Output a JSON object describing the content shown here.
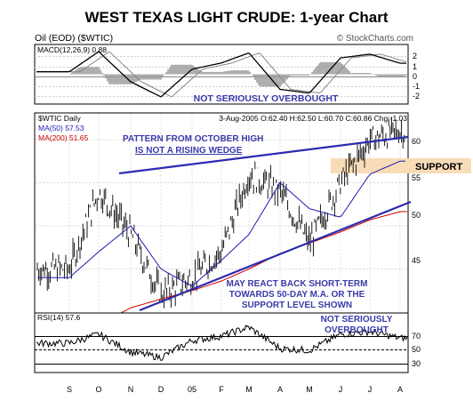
{
  "header": {
    "title": "WEST TEXAS LIGHT CRUDE: 1-year Chart",
    "symbol_line": "Oil (EOD) ($WTIC)",
    "watermark": "© StockCharts.com"
  },
  "macd_panel": {
    "label": "MACD(12,26,9) 0.88",
    "annotation": "NOT SERIOUSLY OVERBOUGHT",
    "yticks": [
      "2",
      "1",
      "0",
      "-1",
      "-2"
    ]
  },
  "price_panel": {
    "name": "$WTIC Daily",
    "quote": "3-Aug-2005  O:62.40  H:62.50  L:60.70  C:60.86  Chg:-1.03",
    "ma50": "MA(50) 57.53",
    "ma200": "MA(200) 51.65",
    "annotation_wedge_1": "PATTERN FROM OCTOBER HIGH",
    "annotation_wedge_2": "IS NOT A RISING WEDGE",
    "annotation_react_1": "MAY REACT BACK SHORT-TERM",
    "annotation_react_2": "TOWARDS 50-DAY M.A. OR THE",
    "annotation_react_3": "SUPPORT LEVEL SHOWN",
    "support_label": "SUPPORT",
    "yticks": [
      "60",
      "55",
      "50",
      "45"
    ]
  },
  "rsi_panel": {
    "label": "RSI(14) 57.6",
    "annotation_1": "NOT SERIOUSLY",
    "annotation_2": "OVERBOUGHT",
    "yticks": [
      "70",
      "50",
      "30"
    ]
  },
  "x_axis": {
    "labels": [
      "S",
      "O",
      "N",
      "D",
      "05",
      "F",
      "M",
      "A",
      "M",
      "J",
      "J",
      "A"
    ]
  },
  "colors": {
    "trendline": "#2b2bb0",
    "annotation_text": "#3a3aa8",
    "ma50": "#1c1cb0",
    "ma200": "#cc0000",
    "support_band": "#f8dcb8",
    "price_bars": "#000000",
    "macd_hist": "#9a9a9a"
  },
  "chart_data": [
    {
      "type": "line",
      "panel": "price",
      "title": "WEST TEXAS LIGHT CRUDE: 1-year Chart",
      "x": [
        "S",
        "O",
        "N",
        "D",
        "05",
        "F",
        "M",
        "A",
        "M",
        "J",
        "J",
        "A"
      ],
      "ylim": [
        40,
        63
      ],
      "series": [
        {
          "name": "$WTIC Daily",
          "values": [
            45,
            54,
            49,
            42,
            44,
            47,
            56,
            54,
            48,
            55,
            60,
            61
          ]
        },
        {
          "name": "MA(50) 57.53",
          "values": [
            44,
            47,
            50,
            45,
            43,
            46,
            49,
            55,
            52,
            51,
            56,
            57.5
          ]
        },
        {
          "name": "MA(200) 51.65",
          "values": [
            null,
            38.5,
            40.5,
            41.5,
            42.5,
            43.6,
            45,
            46.8,
            48,
            49.3,
            50.7,
            51.65
          ]
        }
      ],
      "support_level": 55.5,
      "grid": true
    },
    {
      "type": "line",
      "panel": "macd",
      "ylim": [
        -2.3,
        2.3
      ],
      "series": [
        {
          "name": "MACD(12,26,9)",
          "values": [
            0.2,
            1.8,
            -0.6,
            -1.8,
            0.4,
            0.9,
            1.7,
            -1.2,
            -1.5,
            1.3,
            1.6,
            0.88
          ]
        }
      ]
    },
    {
      "type": "line",
      "panel": "rsi",
      "ylim": [
        20,
        85
      ],
      "series": [
        {
          "name": "RSI(14)",
          "values": [
            52,
            62,
            42,
            36,
            55,
            60,
            70,
            46,
            44,
            62,
            65,
            57.6
          ]
        }
      ]
    }
  ]
}
